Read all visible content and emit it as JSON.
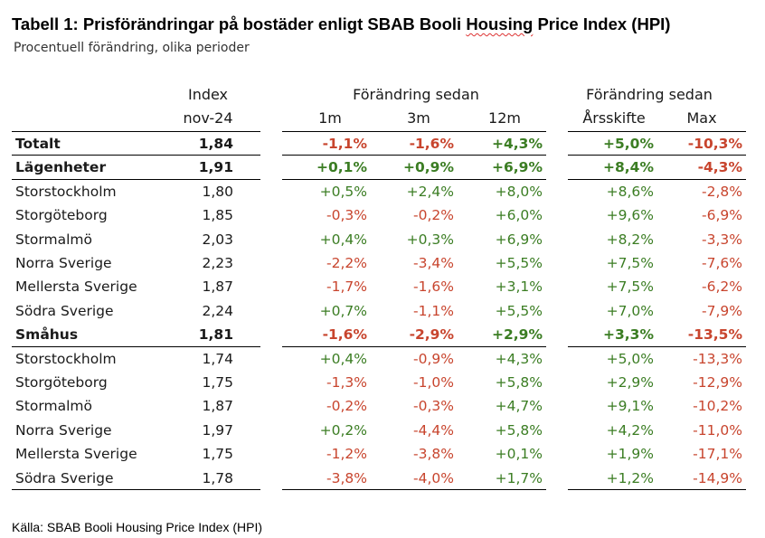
{
  "title_prefix": "Tabell 1: Prisförändringar på bostäder enligt SBAB Booli ",
  "title_squiggle": "Housing",
  "title_suffix": " Price Index (HPI)",
  "subtitle": "Procentuell förändring, olika perioder",
  "source": "Källa: SBAB Booli Housing Price Index (HPI)",
  "headers": {
    "index_top": "Index",
    "index_bottom": "nov-24",
    "group1": "Förändring sedan",
    "group2": "Förändring sedan",
    "c1m": "1m",
    "c3m": "3m",
    "c12m": "12m",
    "cars": "Årsskifte",
    "cmax": "Max"
  },
  "rows": [
    {
      "label": "Totalt",
      "bold": true,
      "index": "1,84",
      "m1": "-1,1%",
      "m3": "-1,6%",
      "m12": "+4,3%",
      "ars": "+5,0%",
      "max": "-10,3%"
    },
    {
      "label": "Lägenheter",
      "bold": true,
      "index": "1,91",
      "m1": "+0,1%",
      "m3": "+0,9%",
      "m12": "+6,9%",
      "ars": "+8,4%",
      "max": "-4,3%"
    },
    {
      "label": "Storstockholm",
      "bold": false,
      "index": "1,80",
      "m1": "+0,5%",
      "m3": "+2,4%",
      "m12": "+8,0%",
      "ars": "+8,6%",
      "max": "-2,8%"
    },
    {
      "label": "Storgöteborg",
      "bold": false,
      "index": "1,85",
      "m1": "-0,3%",
      "m3": "-0,2%",
      "m12": "+6,0%",
      "ars": "+9,6%",
      "max": "-6,9%"
    },
    {
      "label": "Stormalmö",
      "bold": false,
      "index": "2,03",
      "m1": "+0,4%",
      "m3": "+0,3%",
      "m12": "+6,9%",
      "ars": "+8,2%",
      "max": "-3,3%"
    },
    {
      "label": "Norra Sverige",
      "bold": false,
      "index": "2,23",
      "m1": "-2,2%",
      "m3": "-3,4%",
      "m12": "+5,5%",
      "ars": "+7,5%",
      "max": "-7,6%"
    },
    {
      "label": "Mellersta Sverige",
      "bold": false,
      "index": "1,87",
      "m1": "-1,7%",
      "m3": "-1,6%",
      "m12": "+3,1%",
      "ars": "+7,5%",
      "max": "-6,2%"
    },
    {
      "label": "Södra Sverige",
      "bold": false,
      "index": "2,24",
      "m1": "+0,7%",
      "m3": "-1,1%",
      "m12": "+5,5%",
      "ars": "+7,0%",
      "max": "-7,9%"
    },
    {
      "label": "Småhus",
      "bold": true,
      "index": "1,81",
      "m1": "-1,6%",
      "m3": "-2,9%",
      "m12": "+2,9%",
      "ars": "+3,3%",
      "max": "-13,5%"
    },
    {
      "label": "Storstockholm",
      "bold": false,
      "index": "1,74",
      "m1": "+0,4%",
      "m3": "-0,9%",
      "m12": "+4,3%",
      "ars": "+5,0%",
      "max": "-13,3%"
    },
    {
      "label": "Storgöteborg",
      "bold": false,
      "index": "1,75",
      "m1": "-1,3%",
      "m3": "-1,0%",
      "m12": "+5,8%",
      "ars": "+2,9%",
      "max": "-12,9%"
    },
    {
      "label": "Stormalmö",
      "bold": false,
      "index": "1,87",
      "m1": "-0,2%",
      "m3": "-0,3%",
      "m12": "+4,7%",
      "ars": "+9,1%",
      "max": "-10,2%"
    },
    {
      "label": "Norra Sverige",
      "bold": false,
      "index": "1,97",
      "m1": "+0,2%",
      "m3": "-4,4%",
      "m12": "+5,8%",
      "ars": "+4,2%",
      "max": "-11,0%"
    },
    {
      "label": "Mellersta Sverige",
      "bold": false,
      "index": "1,75",
      "m1": "-1,2%",
      "m3": "-3,8%",
      "m12": "+0,1%",
      "ars": "+1,9%",
      "max": "-17,1%"
    },
    {
      "label": "Södra Sverige",
      "bold": false,
      "index": "1,78",
      "m1": "-3,8%",
      "m3": "-4,0%",
      "m12": "+1,7%",
      "ars": "+1,2%",
      "max": "-14,9%"
    }
  ],
  "colors": {
    "positive": "#3b7d23",
    "negative": "#c8452e"
  }
}
